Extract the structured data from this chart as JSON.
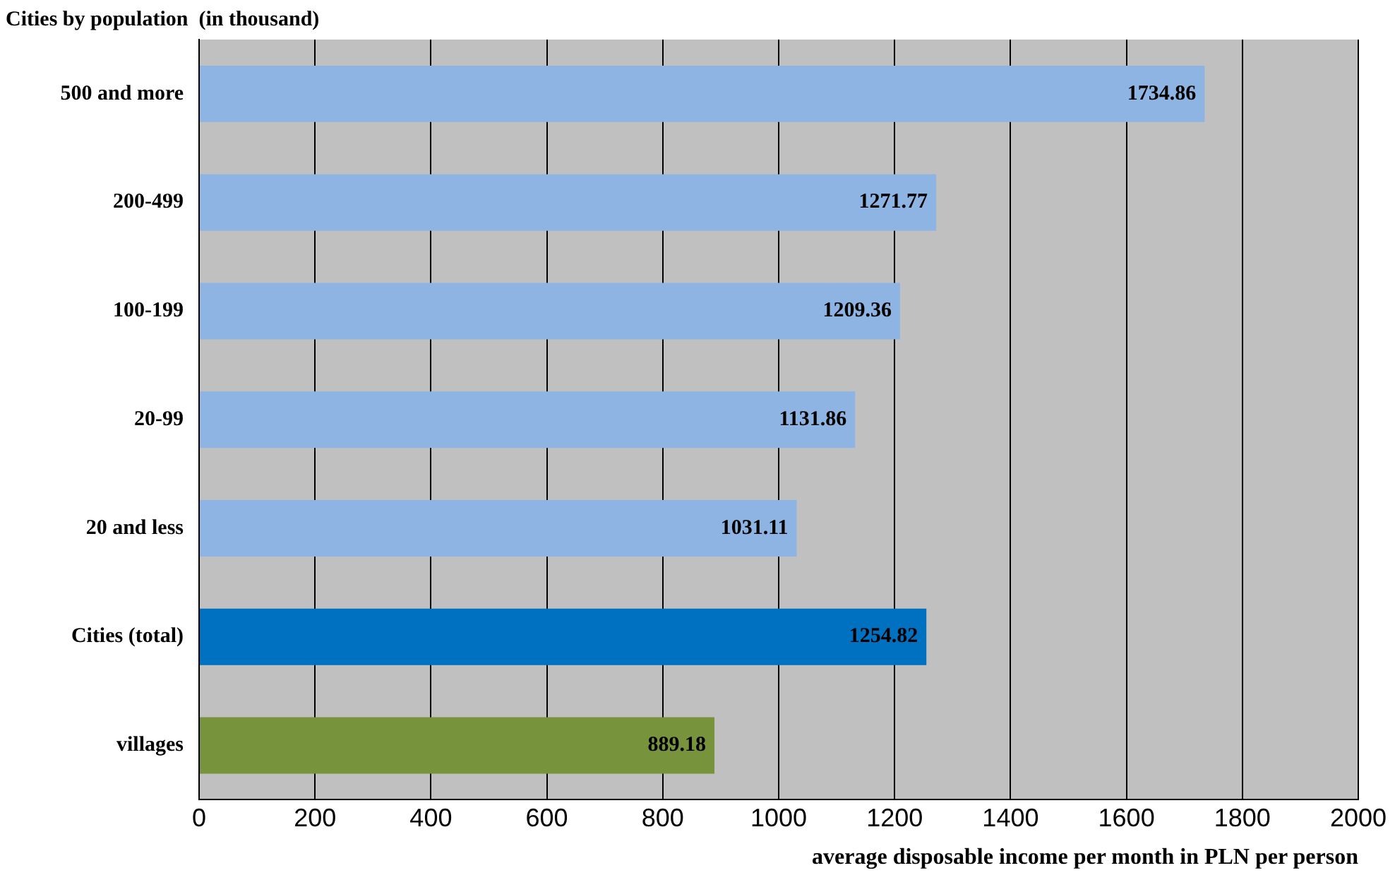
{
  "chart_data": {
    "type": "bar",
    "orientation": "horizontal",
    "ylabel": "Cities by population  (in thousand)",
    "xlabel": "average disposable income per month in PLN per person",
    "categories": [
      "500 and more",
      "200-499",
      "100-199",
      "20-99",
      "20 and less",
      "Cities (total)",
      "villages"
    ],
    "values": [
      1734.86,
      1271.77,
      1209.36,
      1131.86,
      1031.11,
      1254.82,
      889.18
    ],
    "colors": [
      "#8db4e2",
      "#8db4e2",
      "#8db4e2",
      "#8db4e2",
      "#8db4e2",
      "#0070c0",
      "#77933c"
    ],
    "xlim": [
      0,
      2000
    ],
    "xticks": [
      0,
      200,
      400,
      600,
      800,
      1000,
      1200,
      1400,
      1600,
      1800,
      2000
    ],
    "grid": "x",
    "data_labels": true,
    "legend": false
  }
}
